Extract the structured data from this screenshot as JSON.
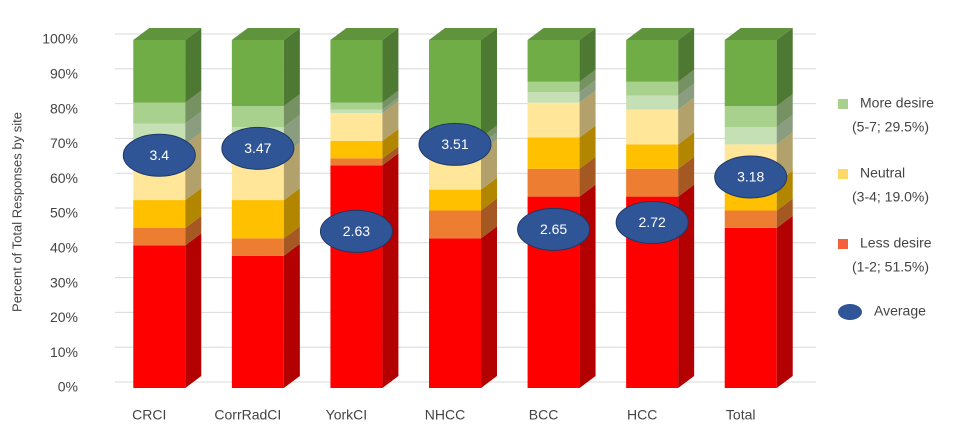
{
  "chart_data": {
    "type": "bar3d_stacked",
    "y_label": "Percent of Total Responses by site",
    "categories": [
      "CRCI",
      "CorrRadCI",
      "YorkCI",
      "NHCC",
      "BCC",
      "HCC",
      "Total"
    ],
    "series": [
      {
        "color": "#ff0000",
        "values": [
          41,
          38,
          64,
          43,
          55,
          55,
          46
        ]
      },
      {
        "color": "#ed7d31",
        "values": [
          5,
          5,
          2,
          8,
          8,
          8,
          5
        ]
      },
      {
        "color": "#ffc000",
        "values": [
          8,
          11,
          5,
          6,
          9,
          7,
          8
        ]
      },
      {
        "color": "#ffe699",
        "values": [
          16,
          13,
          8,
          11,
          10,
          10,
          11
        ]
      },
      {
        "color": "#c5e0b4",
        "values": [
          6,
          8,
          1,
          2,
          3,
          4,
          5
        ]
      },
      {
        "color": "#a9d18e",
        "values": [
          6,
          6,
          2,
          2,
          3,
          4,
          6
        ]
      },
      {
        "color": "#70ad47",
        "values": [
          18,
          19,
          18,
          28,
          12,
          12,
          19
        ]
      }
    ],
    "average": {
      "name": "Average",
      "color": "#2f5597",
      "values": [
        3.4,
        3.47,
        2.63,
        3.51,
        2.65,
        2.72,
        3.18
      ]
    },
    "legend": [
      {
        "name": "More desire",
        "note": "(5-7; 29.5%)",
        "color": "#a9d18e"
      },
      {
        "name": "Neutral",
        "note": "(3-4; 19.0%)",
        "color": "#ffd966"
      },
      {
        "name": "Less desire",
        "note": "(1-2; 51.5%)",
        "color": "#f4603a"
      }
    ],
    "ylim": [
      0,
      100
    ],
    "yticks": [
      {
        "value": 0,
        "label": "0%"
      },
      {
        "value": 10,
        "label": "10%"
      },
      {
        "value": 20,
        "label": "20%"
      },
      {
        "value": 30,
        "label": "30%"
      },
      {
        "value": 40,
        "label": "40%"
      },
      {
        "value": 50,
        "label": "50%"
      },
      {
        "value": 60,
        "label": "60%"
      },
      {
        "value": 70,
        "label": "70%"
      },
      {
        "value": 80,
        "label": "80%"
      },
      {
        "value": 90,
        "label": "90%"
      },
      {
        "value": 100,
        "label": "100%"
      }
    ],
    "grid": true
  }
}
